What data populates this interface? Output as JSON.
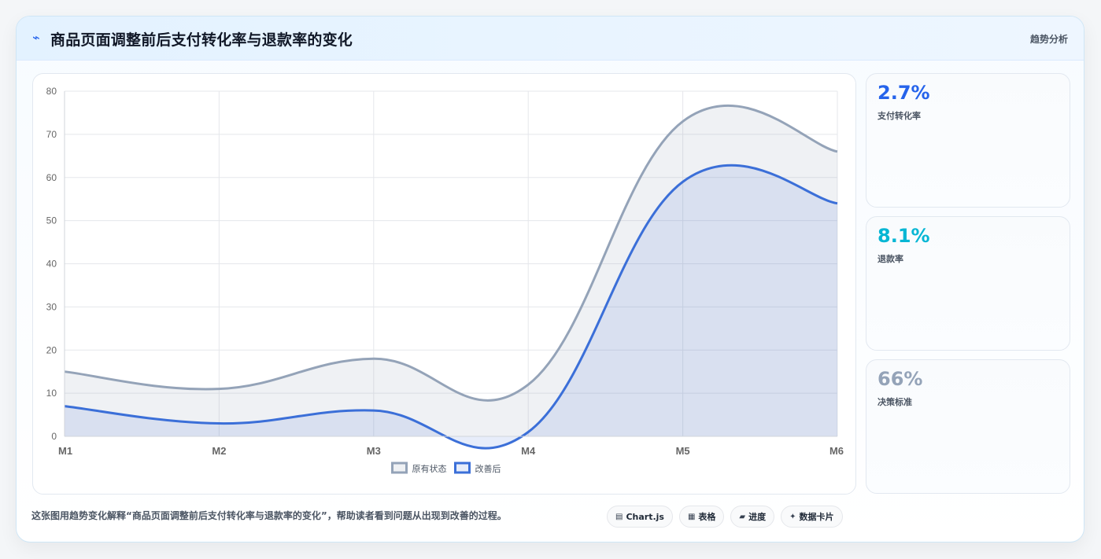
{
  "header": {
    "title": "商品页面调整前后支付转化率与退款率的变化",
    "badge": "趋势分析",
    "icon": "trend-icon"
  },
  "kpis": [
    {
      "value": "2.7%",
      "label": "支付转化率",
      "color": "#2563eb"
    },
    {
      "value": "8.1%",
      "label": "退款率",
      "color": "#06b6d4"
    },
    {
      "value": "66%",
      "label": "决策标准",
      "color": "#94a3b8"
    }
  ],
  "footer": {
    "text": "这张图用趋势变化解释“商品页面调整前后支付转化率与退款率的变化”，帮助读者看到问题从出现到改善的过程。",
    "chips": [
      {
        "icon": "chart-icon",
        "glyph": "▤",
        "label": "Chart.js"
      },
      {
        "icon": "table-icon",
        "glyph": "▦",
        "label": "表格"
      },
      {
        "icon": "progress-icon",
        "glyph": "▰",
        "label": "进度"
      },
      {
        "icon": "card-icon",
        "glyph": "✦",
        "label": "数据卡片"
      }
    ]
  },
  "chart_data": {
    "type": "area",
    "categories": [
      "M1",
      "M2",
      "M3",
      "M4",
      "M5",
      "M6"
    ],
    "series": [
      {
        "name": "原有状态",
        "values": [
          15,
          11,
          18,
          12,
          73,
          66
        ],
        "color": "#94a3b8"
      },
      {
        "name": "改善后",
        "values": [
          7,
          3,
          6,
          1,
          59,
          54
        ],
        "color": "#3b6fd8"
      }
    ],
    "ylim": [
      0,
      80
    ],
    "yticks": [
      0,
      10,
      20,
      30,
      40,
      50,
      60,
      70,
      80
    ],
    "grid": true,
    "legend": "bottom"
  }
}
